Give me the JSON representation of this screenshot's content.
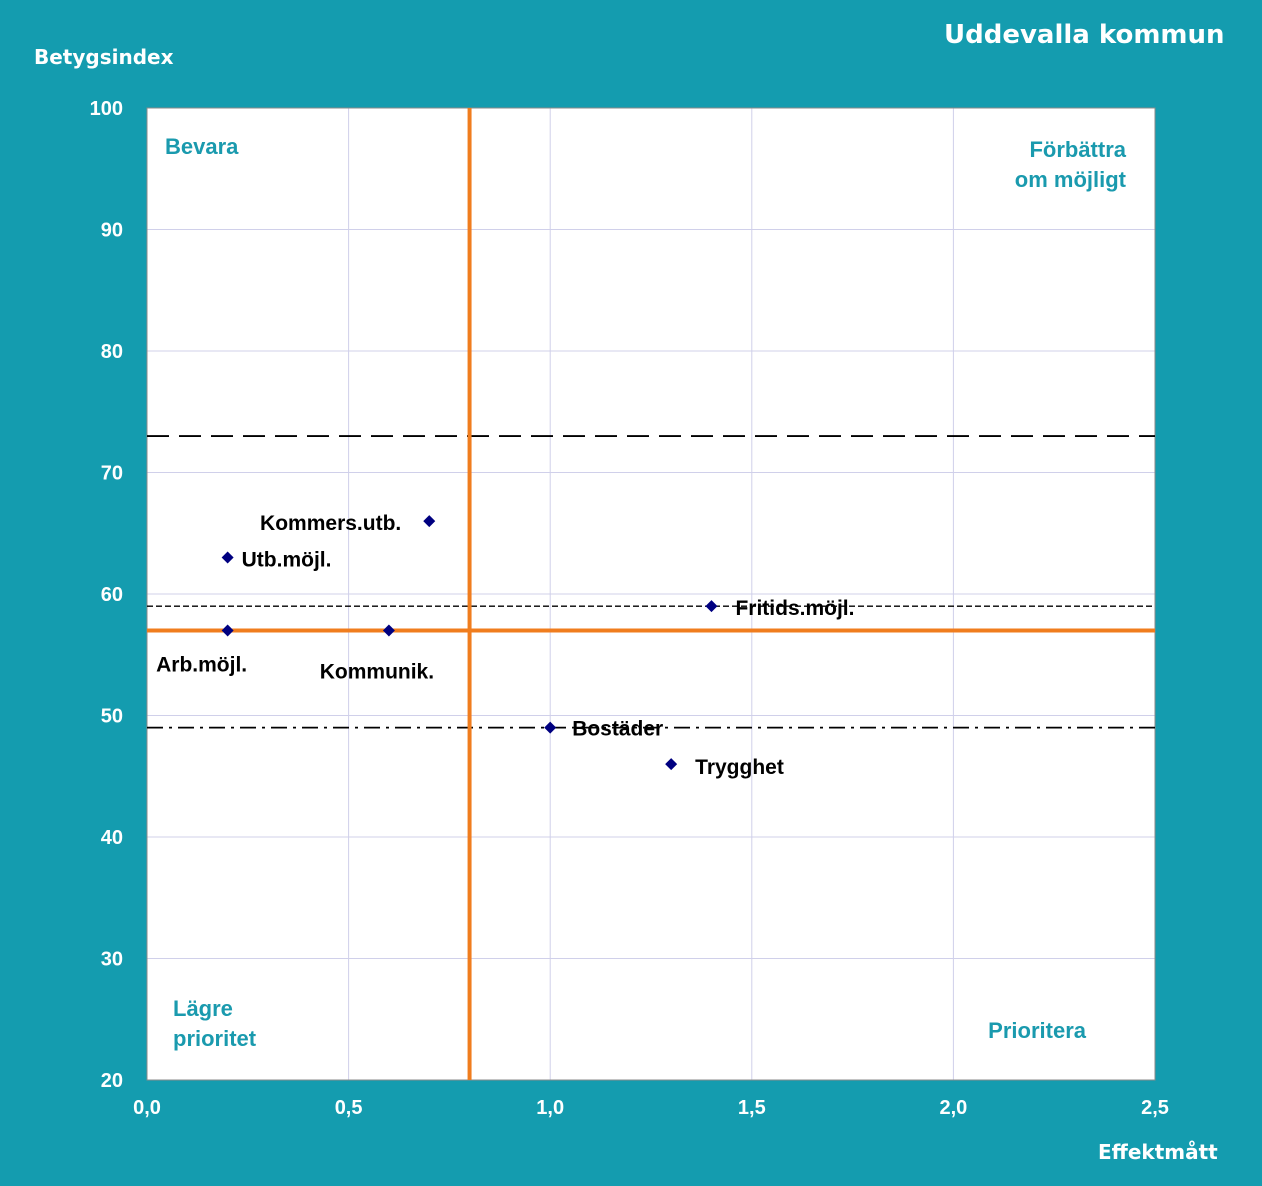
{
  "header": {
    "title": "Uddevalla kommun",
    "ylabel": "Betygsindex",
    "xlabel": "Effektmått"
  },
  "colors": {
    "background": "#149caf",
    "plot_bg": "#ffffff",
    "grid": "#d0d0ea",
    "quadrant_line": "#f07d1e",
    "marker": "#000080",
    "quadrant_text": "#1a9aae",
    "reference_line": "#000000"
  },
  "chart_data": {
    "type": "scatter",
    "title": "Uddevalla kommun",
    "xlabel": "Effektmått",
    "ylabel": "Betygsindex",
    "xlim": [
      0,
      2.5
    ],
    "ylim": [
      20,
      100
    ],
    "x_ticks": [
      "0,0",
      "0,5",
      "1,0",
      "1,5",
      "2,0",
      "2,5"
    ],
    "y_ticks": [
      "20",
      "30",
      "40",
      "50",
      "60",
      "70",
      "80",
      "90",
      "100"
    ],
    "grid": true,
    "points": [
      {
        "label": "Kommers.utb.",
        "x": 0.7,
        "y": 66
      },
      {
        "label": "Utb.möjl.",
        "x": 0.2,
        "y": 63
      },
      {
        "label": "Fritids.möjl.",
        "x": 1.4,
        "y": 59
      },
      {
        "label": "Arb.möjl.",
        "x": 0.2,
        "y": 57
      },
      {
        "label": "Kommunik.",
        "x": 0.6,
        "y": 57
      },
      {
        "label": "Bostäder",
        "x": 1.0,
        "y": 49
      },
      {
        "label": "Trygghet",
        "x": 1.3,
        "y": 46
      }
    ],
    "quadrant_lines": {
      "x": 0.8,
      "y": 57
    },
    "reference_lines": [
      {
        "y": 73,
        "style": "long-dash"
      },
      {
        "y": 59,
        "style": "short-dash"
      },
      {
        "y": 49,
        "style": "dash-dot"
      }
    ],
    "quadrant_labels": [
      {
        "text": [
          "Bevara"
        ],
        "position": "top-left"
      },
      {
        "text": [
          "Förbättra",
          "om möjligt"
        ],
        "position": "top-right"
      },
      {
        "text": [
          "Lägre",
          "prioritet"
        ],
        "position": "bottom-left"
      },
      {
        "text": [
          "Prioritera"
        ],
        "position": "bottom-right"
      }
    ]
  }
}
